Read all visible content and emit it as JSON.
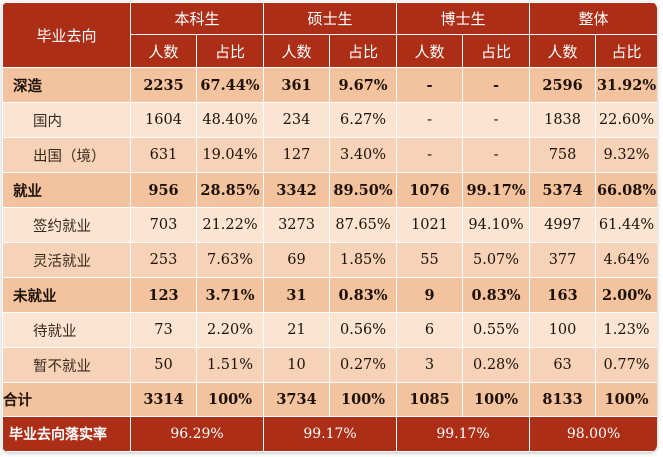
{
  "table": {
    "header": {
      "row_label": "毕业去向",
      "groups": [
        "本科生",
        "硕士生",
        "博士生",
        "整体"
      ],
      "sub": [
        "人数",
        "占比"
      ]
    },
    "rows": [
      {
        "label": "深造",
        "cells": [
          "2235",
          "67.44%",
          "361",
          "9.67%",
          "-",
          "-",
          "2596",
          "31.92%"
        ]
      },
      {
        "label": "国内",
        "cells": [
          "1604",
          "48.40%",
          "234",
          "6.27%",
          "-",
          "-",
          "1838",
          "22.60%"
        ]
      },
      {
        "label": "出国（境）",
        "cells": [
          "631",
          "19.04%",
          "127",
          "3.40%",
          "-",
          "-",
          "758",
          "9.32%"
        ]
      },
      {
        "label": "就业",
        "cells": [
          "956",
          "28.85%",
          "3342",
          "89.50%",
          "1076",
          "99.17%",
          "5374",
          "66.08%"
        ]
      },
      {
        "label": "签约就业",
        "cells": [
          "703",
          "21.22%",
          "3273",
          "87.65%",
          "1021",
          "94.10%",
          "4997",
          "61.44%"
        ]
      },
      {
        "label": "灵活就业",
        "cells": [
          "253",
          "7.63%",
          "69",
          "1.85%",
          "55",
          "5.07%",
          "377",
          "4.64%"
        ]
      },
      {
        "label": "未就业",
        "cells": [
          "123",
          "3.71%",
          "31",
          "0.83%",
          "9",
          "0.83%",
          "163",
          "2.00%"
        ]
      },
      {
        "label": "待就业",
        "cells": [
          "73",
          "2.20%",
          "21",
          "0.56%",
          "6",
          "0.55%",
          "100",
          "1.23%"
        ]
      },
      {
        "label": "暂不就业",
        "cells": [
          "50",
          "1.51%",
          "10",
          "0.27%",
          "3",
          "0.28%",
          "63",
          "0.77%"
        ]
      },
      {
        "label": "合计",
        "cells": [
          "3314",
          "100%",
          "3734",
          "100%",
          "1085",
          "100%",
          "8133",
          "100%"
        ]
      }
    ],
    "footer": {
      "label": "毕业去向落实率",
      "values": [
        "96.29%",
        "99.17%",
        "99.17%",
        "98.00%"
      ]
    }
  }
}
